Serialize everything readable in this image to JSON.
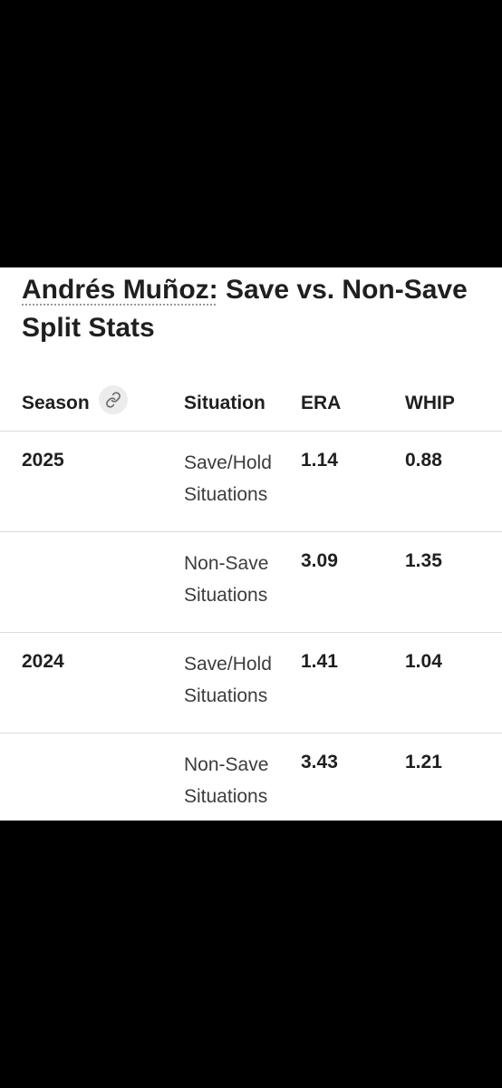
{
  "title": {
    "link_text": "Andrés Muñoz:",
    "rest_text": " Save vs. Non-Save Split Stats"
  },
  "table": {
    "headers": {
      "season": "Season",
      "situation": "Situation",
      "era": "ERA",
      "whip": "WHIP"
    },
    "rows": [
      {
        "season": "2025",
        "situation": "Save/Hold Situations",
        "era": "1.14",
        "whip": "0.88"
      },
      {
        "season": "",
        "situation": "Non-Save Situations",
        "era": "3.09",
        "whip": "1.35"
      },
      {
        "season": "2024",
        "situation": "Save/Hold Situations",
        "era": "1.41",
        "whip": "1.04"
      },
      {
        "season": "",
        "situation": "Non-Save Situations",
        "era": "3.43",
        "whip": "1.21"
      }
    ]
  },
  "icons": {
    "season_link": "link-icon"
  },
  "colors": {
    "text": "#1f1f1f",
    "divider": "#dadce0",
    "background": "#ffffff"
  }
}
